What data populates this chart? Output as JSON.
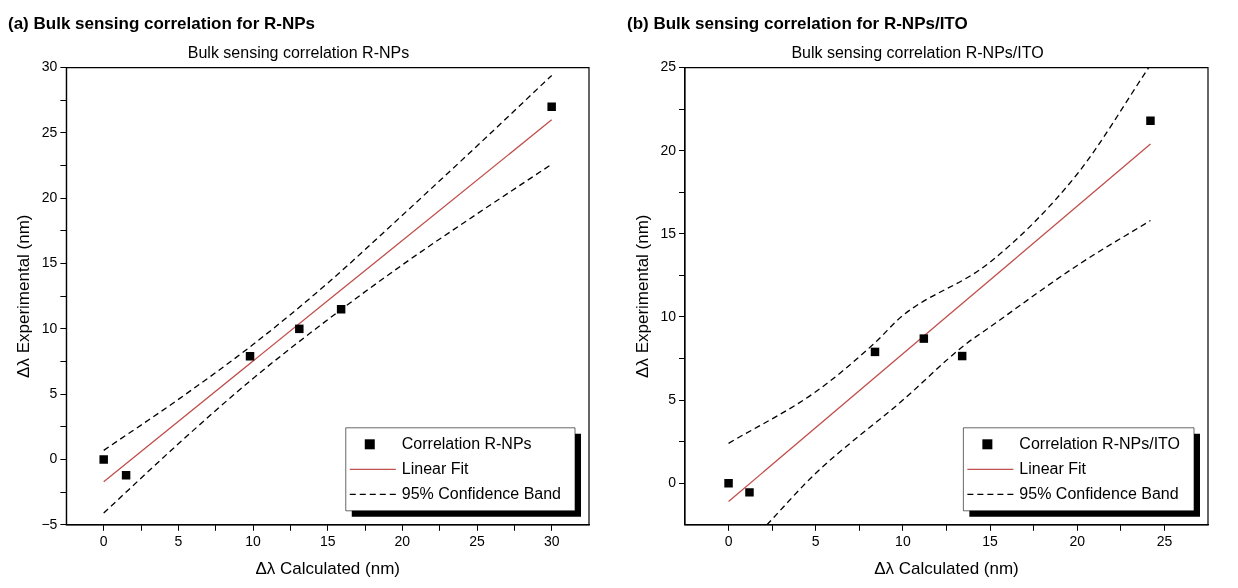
{
  "chart_data": [
    {
      "type": "scatter",
      "title": "(a) Bulk sensing correlation for R-NPs",
      "subtitle": "Bulk sensing correlation R-NPs",
      "xlabel": "Δλ Calculated (nm)",
      "ylabel": "Δλ Experimental (nm)",
      "xlim": [
        -2.5,
        32.5
      ],
      "ylim": [
        -5,
        30
      ],
      "xticks": [
        0,
        {
          "value": 2.5,
          "label": null
        },
        5,
        {
          "value": 7.5,
          "label": null
        },
        10,
        {
          "value": 12.5,
          "label": null
        },
        15,
        {
          "value": 17.5,
          "label": null
        },
        20,
        {
          "value": 22.5,
          "label": null
        },
        25,
        {
          "value": 27.5,
          "label": null
        },
        30
      ],
      "yticks": [
        -5,
        {
          "value": -2.5,
          "label": null
        },
        0,
        {
          "value": 2.5,
          "label": null
        },
        5,
        {
          "value": 7.5,
          "label": null
        },
        10,
        {
          "value": 12.5,
          "label": null
        },
        15,
        {
          "value": 17.5,
          "label": null
        },
        20,
        {
          "value": 22.5,
          "label": null
        },
        25,
        {
          "value": 27.5,
          "label": null
        },
        30
      ],
      "grid": false,
      "legend": "bottom right",
      "series": [
        {
          "name": "Correlation R-NPs",
          "marker": "square",
          "color": "#000000",
          "x": [
            0,
            1.5,
            9.8,
            13.1,
            15.9,
            30
          ],
          "values": [
            0,
            -1.2,
            7.9,
            10.0,
            11.5,
            27.0
          ]
        },
        {
          "name": "Linear Fit",
          "type": "line",
          "color": "#c0504d",
          "line_style": "solid",
          "x": [
            0,
            30
          ],
          "values": [
            -1.7,
            26.0
          ]
        },
        {
          "name": "95% Confidence Band",
          "type": "line",
          "color": "#000000",
          "line_style": "dashed",
          "x": [
            0,
            5,
            10,
            15,
            20,
            25,
            30
          ],
          "values": [
            0.7,
            4.6,
            8.8,
            13.5,
            18.7,
            24.0,
            29.4
          ]
        },
        {
          "type": "line",
          "color": "#000000",
          "line_style": "dashed",
          "x": [
            0,
            5,
            10,
            15,
            20,
            25,
            30
          ],
          "values": [
            -4.1,
            1.2,
            6.2,
            10.7,
            14.9,
            18.8,
            22.6
          ]
        }
      ]
    },
    {
      "type": "scatter",
      "title": "(b) Bulk sensing correlation for R-NPs/ITO",
      "subtitle": "Bulk sensing correlation R-NPs/ITO",
      "xlabel": "Δλ Calculated (nm)",
      "ylabel": "Δλ Experimental (nm)",
      "xlim": [
        -2.5,
        27.5
      ],
      "ylim": [
        -2.5,
        25
      ],
      "xticks": [
        0,
        {
          "value": 2.5,
          "label": null
        },
        5,
        {
          "value": 7.5,
          "label": null
        },
        10,
        {
          "value": 12.5,
          "label": null
        },
        15,
        {
          "value": 17.5,
          "label": null
        },
        20,
        {
          "value": 22.5,
          "label": null
        },
        25
      ],
      "yticks": [
        0,
        {
          "value": 2.5,
          "label": null
        },
        5,
        {
          "value": 7.5,
          "label": null
        },
        10,
        {
          "value": 12.5,
          "label": null
        },
        15,
        {
          "value": 17.5,
          "label": null
        },
        20,
        {
          "value": 22.5,
          "label": null
        },
        25
      ],
      "grid": false,
      "legend": "bottom right",
      "series": [
        {
          "name": "Correlation R-NPs/ITO",
          "marker": "square",
          "color": "#000000",
          "x": [
            0,
            1.2,
            8.4,
            11.2,
            13.4,
            24.2
          ],
          "values": [
            0,
            -0.55,
            7.9,
            8.7,
            7.65,
            21.8
          ]
        },
        {
          "name": "Linear Fit",
          "type": "line",
          "color": "#c0504d",
          "line_style": "solid",
          "x": [
            0,
            24.2
          ],
          "values": [
            -1.1,
            20.4
          ]
        },
        {
          "name": "95% Confidence Band",
          "type": "line",
          "color": "#000000",
          "line_style": "dashed",
          "x": [
            0,
            5,
            8.4,
            10,
            15,
            20,
            24.1
          ],
          "values": [
            2.4,
            5.5,
            8.45,
            10.1,
            13.3,
            18.6,
            25.0
          ]
        },
        {
          "type": "line",
          "color": "#000000",
          "line_style": "dashed",
          "x": [
            2.2,
            5,
            10,
            13.4,
            15,
            20,
            24.2
          ],
          "values": [
            -2.5,
            0.6,
            5.0,
            8.2,
            9.4,
            13.1,
            15.8
          ]
        }
      ]
    }
  ]
}
